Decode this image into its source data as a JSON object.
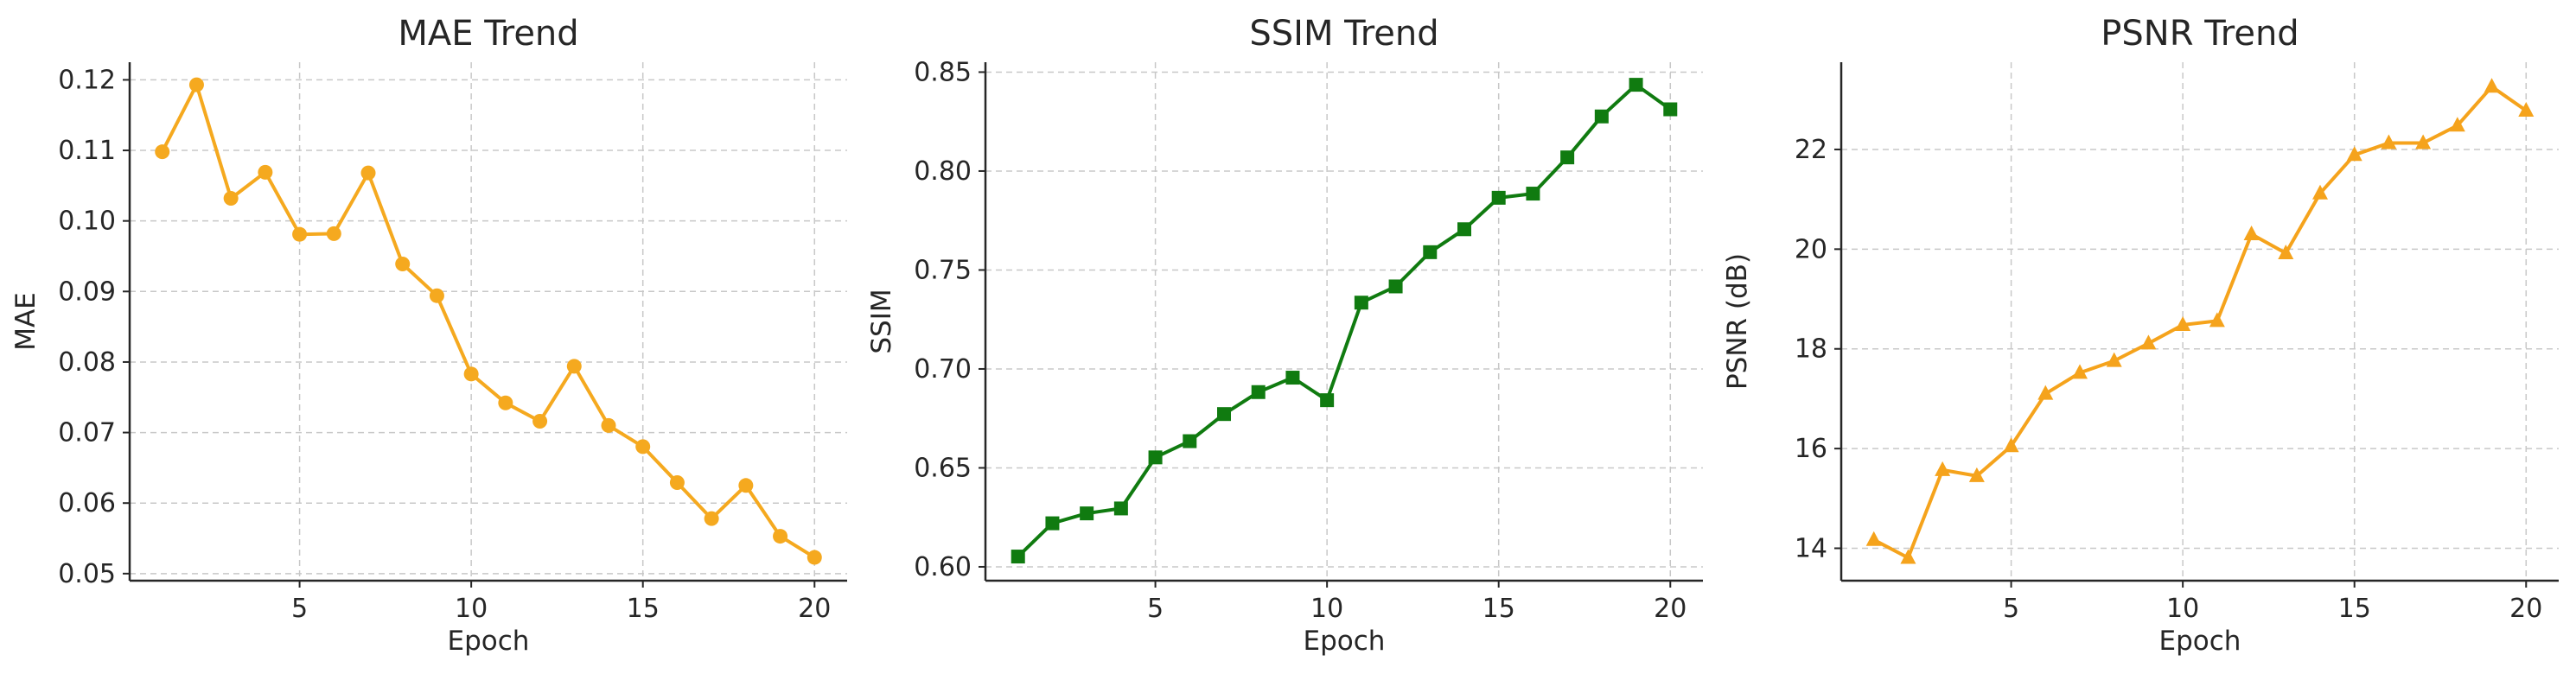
{
  "chart_data": [
    {
      "type": "line",
      "title": "MAE Trend",
      "xlabel": "Epoch",
      "ylabel": "MAE",
      "xlim": [
        0.05,
        20.95
      ],
      "ylim": [
        0.049,
        0.1225
      ],
      "xticks": [
        5,
        10,
        15,
        20
      ],
      "yticks": [
        0.05,
        0.06,
        0.07,
        0.08,
        0.09,
        0.1,
        0.11,
        0.12
      ],
      "ytick_labels": [
        "0.05",
        "0.06",
        "0.07",
        "0.08",
        "0.09",
        "0.10",
        "0.11",
        "0.12"
      ],
      "grid": true,
      "marker": "circle",
      "color": "#f5a91f",
      "series": [
        {
          "x": [
            1,
            2,
            3,
            4,
            5,
            6,
            7,
            8,
            9,
            10,
            11,
            12,
            13,
            14,
            15,
            16,
            17,
            18,
            19,
            20
          ],
          "values": [
            0.1098,
            0.1193,
            0.1032,
            0.1069,
            0.0981,
            0.0982,
            0.1068,
            0.0939,
            0.0894,
            0.0783,
            0.0742,
            0.0716,
            0.0794,
            0.071,
            0.068,
            0.0629,
            0.0578,
            0.0625,
            0.0553,
            0.0523
          ]
        }
      ]
    },
    {
      "type": "line",
      "title": "SSIM Trend",
      "xlabel": "Epoch",
      "ylabel": "SSIM",
      "xlim": [
        0.05,
        20.95
      ],
      "ylim": [
        0.593,
        0.855
      ],
      "xticks": [
        5,
        10,
        15,
        20
      ],
      "yticks": [
        0.6,
        0.65,
        0.7,
        0.75,
        0.8,
        0.85
      ],
      "ytick_labels": [
        "0.60",
        "0.65",
        "0.70",
        "0.75",
        "0.80",
        "0.85"
      ],
      "grid": true,
      "marker": "square",
      "color": "#107b10",
      "series": [
        {
          "x": [
            1,
            2,
            3,
            4,
            5,
            6,
            7,
            8,
            9,
            10,
            11,
            12,
            13,
            14,
            15,
            16,
            17,
            18,
            19,
            20
          ],
          "values": [
            0.6052,
            0.622,
            0.627,
            0.6295,
            0.6553,
            0.6635,
            0.6772,
            0.6883,
            0.6956,
            0.6842,
            0.7335,
            0.7417,
            0.759,
            0.7706,
            0.7865,
            0.7886,
            0.8069,
            0.8276,
            0.8436,
            0.8312
          ]
        }
      ]
    },
    {
      "type": "line",
      "title": "PSNR Trend",
      "xlabel": "Epoch",
      "ylabel": "PSNR (dB)",
      "xlim": [
        0.05,
        20.95
      ],
      "ylim": [
        13.35,
        23.75
      ],
      "xticks": [
        5,
        10,
        15,
        20
      ],
      "yticks": [
        14,
        16,
        18,
        20,
        22
      ],
      "ytick_labels": [
        "14",
        "16",
        "18",
        "20",
        "22"
      ],
      "grid": true,
      "marker": "triangle",
      "color": "#f5a31c",
      "series": [
        {
          "x": [
            1,
            2,
            3,
            4,
            5,
            6,
            7,
            8,
            9,
            10,
            11,
            12,
            13,
            14,
            15,
            16,
            17,
            18,
            19,
            20
          ],
          "values": [
            14.17,
            13.81,
            15.57,
            15.45,
            16.05,
            17.1,
            17.52,
            17.76,
            18.11,
            18.48,
            18.56,
            20.3,
            19.92,
            21.12,
            21.89,
            22.13,
            22.13,
            22.48,
            23.26,
            22.78
          ]
        }
      ]
    }
  ]
}
